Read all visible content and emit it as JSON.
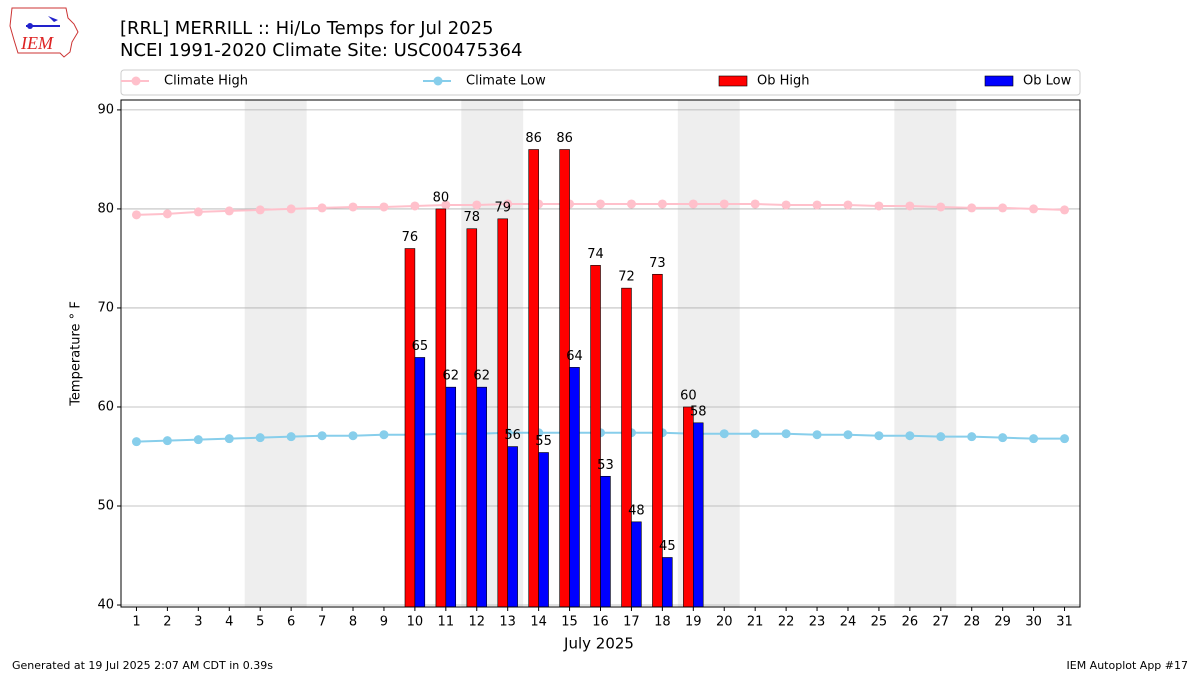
{
  "chart_data": {
    "type": "bar",
    "logo_text": "IEM",
    "title": "[RRL] MERRILL :: Hi/Lo Temps for Jul 2025",
    "subtitle": "NCEI 1991-2020 Climate Site: USC00475364",
    "x_label": "July 2025",
    "y_label": "Temperature $^\\circ$F",
    "footer_left": "Generated at 19 Jul 2025 2:07 AM CDT in 0.39s",
    "footer_right": "IEM Autoplot App #17",
    "x": [
      1,
      2,
      3,
      4,
      5,
      6,
      7,
      8,
      9,
      10,
      11,
      12,
      13,
      14,
      15,
      16,
      17,
      18,
      19,
      20,
      21,
      22,
      23,
      24,
      25,
      26,
      27,
      28,
      29,
      30,
      31
    ],
    "xlim": [
      0.5,
      31.5
    ],
    "xticks": [
      1,
      2,
      3,
      4,
      5,
      6,
      7,
      8,
      9,
      10,
      11,
      12,
      13,
      14,
      15,
      16,
      17,
      18,
      19,
      20,
      21,
      22,
      23,
      24,
      25,
      26,
      27,
      28,
      29,
      30,
      31
    ],
    "ylim": [
      39.8,
      91
    ],
    "yticks": [
      40,
      50,
      60,
      70,
      80,
      90
    ],
    "grid": true,
    "shaded_spans": [
      [
        4.5,
        6.5
      ],
      [
        11.5,
        13.5
      ],
      [
        18.5,
        20.5
      ],
      [
        25.5,
        27.5
      ]
    ],
    "shade_color": "#eeeeee",
    "series": [
      {
        "name": "Climate High",
        "type": "line",
        "color": "pink",
        "values": [
          79.4,
          79.5,
          79.7,
          79.8,
          79.9,
          80.0,
          80.1,
          80.2,
          80.2,
          80.3,
          80.4,
          80.4,
          80.5,
          80.5,
          80.5,
          80.5,
          80.5,
          80.5,
          80.5,
          80.5,
          80.5,
          80.4,
          80.4,
          80.4,
          80.3,
          80.3,
          80.2,
          80.1,
          80.1,
          80.0,
          79.9
        ]
      },
      {
        "name": "Climate Low",
        "type": "line",
        "color": "skyblue",
        "values": [
          56.5,
          56.6,
          56.7,
          56.8,
          56.9,
          57.0,
          57.1,
          57.1,
          57.2,
          57.2,
          57.3,
          57.3,
          57.4,
          57.4,
          57.4,
          57.4,
          57.4,
          57.4,
          57.3,
          57.3,
          57.3,
          57.3,
          57.2,
          57.2,
          57.1,
          57.1,
          57.0,
          57.0,
          56.9,
          56.8,
          56.8
        ]
      },
      {
        "name": "Ob High",
        "type": "bar",
        "color": "#ff0000",
        "values": [
          null,
          null,
          null,
          null,
          null,
          null,
          null,
          null,
          null,
          76,
          80,
          78,
          79,
          86,
          86,
          74.3,
          72,
          73.4,
          60,
          null,
          null,
          null,
          null,
          null,
          null,
          null,
          null,
          null,
          null,
          null,
          null
        ],
        "value_labels": [
          null,
          null,
          null,
          null,
          null,
          null,
          null,
          null,
          null,
          "76",
          "80",
          "78",
          "79",
          "86",
          "86",
          "74",
          "72",
          "73",
          "60",
          null,
          null,
          null,
          null,
          null,
          null,
          null,
          null,
          null,
          null,
          null,
          null
        ]
      },
      {
        "name": "Ob Low",
        "type": "bar",
        "color": "#0000ff",
        "values": [
          null,
          null,
          null,
          null,
          null,
          null,
          null,
          null,
          null,
          65,
          62,
          62,
          56,
          55.4,
          64,
          53,
          48.4,
          44.8,
          58.4,
          null,
          null,
          null,
          null,
          null,
          null,
          null,
          null,
          null,
          null,
          null,
          null
        ],
        "value_labels": [
          null,
          null,
          null,
          null,
          null,
          null,
          null,
          null,
          null,
          "65",
          "62",
          "62",
          "56",
          "55",
          "64",
          "53",
          "48",
          "45",
          "58",
          null,
          null,
          null,
          null,
          null,
          null,
          null,
          null,
          null,
          null,
          null,
          null
        ]
      }
    ]
  }
}
